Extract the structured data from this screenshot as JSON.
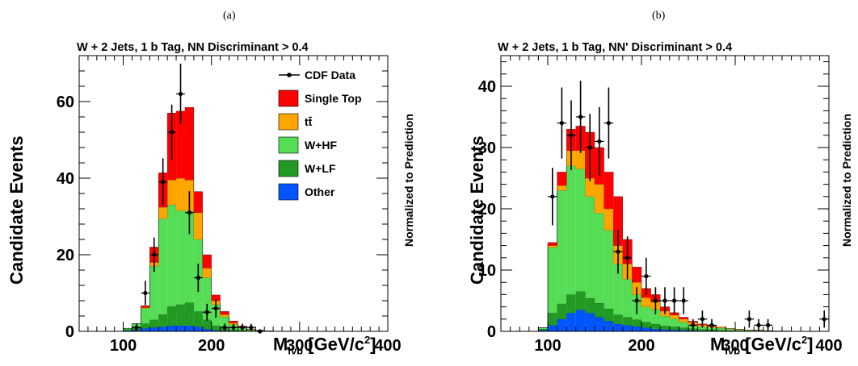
{
  "panels": [
    {
      "label": "(a)",
      "title": "W + 2 Jets, 1 b Tag, NN Discriminant > 0.4",
      "ylabel": "Candidate Events",
      "right_label": "Normalized to Prediction",
      "xlabel_main": "M",
      "xlabel_sub": "lνb",
      "xlabel_unit": " [GeV/c",
      "xlabel_sup": "2",
      "xlabel_close": "]"
    },
    {
      "label": "(b)",
      "title": "W + 2 Jets, 1 b Tag, NN' Discriminant > 0.4",
      "ylabel": "Candidate Events",
      "right_label": "Normalized to Prediction",
      "xlabel_main": "M",
      "xlabel_sub": "lνb",
      "xlabel_unit": " [GeV/c",
      "xlabel_sup": "2",
      "xlabel_close": "]"
    }
  ],
  "legend": [
    {
      "label": "CDF Data",
      "kind": "marker"
    },
    {
      "label": "Single Top",
      "kind": "box",
      "color": "#ff0000"
    },
    {
      "label": "tt̄",
      "kind": "box",
      "color": "#ffa500"
    },
    {
      "label": "W+HF",
      "kind": "box",
      "color": "#55dd55"
    },
    {
      "label": "W+LF",
      "kind": "box",
      "color": "#229922"
    },
    {
      "label": "Other",
      "kind": "box",
      "color": "#0055ff"
    }
  ],
  "chart_data": [
    {
      "type": "bar",
      "stacked": true,
      "bin_width": 10,
      "xlim": [
        50,
        400
      ],
      "ylim": [
        0,
        72
      ],
      "xticks": [
        100,
        200,
        300,
        400
      ],
      "yticks": [
        0,
        20,
        40,
        60
      ],
      "bin_lows": [
        90,
        100,
        110,
        120,
        130,
        140,
        150,
        160,
        170,
        180,
        190,
        200,
        210,
        220,
        230,
        240,
        250,
        260,
        270
      ],
      "series": [
        {
          "name": "Other",
          "color": "#0055ff",
          "values": [
            0,
            0.2,
            0.4,
            0.8,
            1.0,
            1.2,
            1.5,
            1.5,
            1.5,
            1.2,
            0.6,
            0.3,
            0.2,
            0.1,
            0.1,
            0,
            0,
            0,
            0
          ]
        },
        {
          "name": "W+LF",
          "color": "#229922",
          "values": [
            0,
            0.3,
            0.6,
            1.2,
            2.0,
            3.2,
            5.0,
            5.5,
            6.0,
            4.0,
            2.4,
            1.2,
            0.6,
            0.3,
            0.2,
            0.1,
            0,
            0,
            0
          ]
        },
        {
          "name": "W+HF",
          "color": "#55dd55",
          "values": [
            0,
            0.3,
            1.0,
            4.0,
            14.0,
            25.0,
            26.5,
            24.5,
            24.0,
            18.8,
            11.0,
            5.5,
            3.0,
            1.4,
            0.7,
            0.3,
            0.2,
            0.1,
            0
          ]
        },
        {
          "name": "tt̄",
          "color": "#ffa500",
          "values": [
            0,
            0,
            0,
            0.2,
            1.0,
            3.0,
            6.5,
            8.5,
            8.0,
            7.0,
            2.5,
            1.0,
            0.6,
            0.4,
            0.2,
            0.1,
            0.1,
            0,
            0
          ]
        },
        {
          "name": "Single Top",
          "color": "#ff0000",
          "values": [
            0,
            0,
            0,
            0.5,
            4.0,
            9.0,
            17.5,
            17.5,
            19.0,
            5.5,
            3.5,
            1.5,
            0.8,
            0.5,
            0.2,
            0.1,
            0,
            0,
            0
          ]
        }
      ],
      "data_points": {
        "name": "CDF Data",
        "x": [
          115,
          125,
          135,
          145,
          155,
          165,
          175,
          185,
          195,
          205,
          215,
          225,
          235,
          245,
          255
        ],
        "y": [
          1,
          10,
          20,
          39,
          52,
          62,
          31,
          14,
          5,
          6,
          1,
          1,
          1,
          1,
          0
        ],
        "yerr": [
          1,
          3.2,
          4.5,
          6.2,
          7.2,
          7.9,
          5.6,
          3.7,
          2.2,
          2.4,
          1,
          1,
          1,
          1,
          0
        ]
      }
    },
    {
      "type": "bar",
      "stacked": true,
      "bin_width": 10,
      "xlim": [
        50,
        400
      ],
      "ylim": [
        0,
        45
      ],
      "xticks": [
        100,
        200,
        300,
        400
      ],
      "yticks": [
        0,
        10,
        20,
        30,
        40
      ],
      "bin_lows": [
        80,
        90,
        100,
        110,
        120,
        130,
        140,
        150,
        160,
        170,
        180,
        190,
        200,
        210,
        220,
        230,
        240,
        250,
        260,
        270,
        280,
        290,
        300,
        310,
        320,
        330,
        340,
        350,
        360,
        370,
        380,
        390
      ],
      "series": [
        {
          "name": "Other",
          "color": "#0055ff",
          "values": [
            0,
            0.2,
            1.0,
            2.0,
            3.0,
            3.5,
            3.0,
            2.3,
            1.7,
            1.2,
            1.0,
            0.8,
            0.6,
            0.4,
            0.3,
            0.25,
            0.2,
            0.15,
            0.1,
            0.1,
            0.05,
            0.05,
            0,
            0,
            0,
            0,
            0,
            0,
            0,
            0,
            0,
            0
          ]
        },
        {
          "name": "W+LF",
          "color": "#229922",
          "values": [
            0,
            0.2,
            2.0,
            2.5,
            3.0,
            3.0,
            2.4,
            2.3,
            2.0,
            1.5,
            1.3,
            1.1,
            0.9,
            0.8,
            0.6,
            0.5,
            0.4,
            0.3,
            0.25,
            0.2,
            0.15,
            0.1,
            0.1,
            0.05,
            0.05,
            0,
            0,
            0,
            0,
            0,
            0,
            0
          ]
        },
        {
          "name": "W+HF",
          "color": "#55dd55",
          "values": [
            0,
            0.2,
            10.7,
            18.5,
            21.0,
            20.0,
            16.6,
            14.7,
            12.8,
            8.3,
            6.2,
            4.1,
            2.5,
            2.4,
            1.6,
            1.3,
            0.9,
            0.6,
            0.4,
            0.3,
            0.3,
            0.2,
            0.15,
            0.1,
            0.1,
            0.1,
            0.05,
            0.05,
            0,
            0,
            0,
            0
          ]
        },
        {
          "name": "tt̄",
          "color": "#ffa500",
          "values": [
            0,
            0,
            0.3,
            0.8,
            2.5,
            3.0,
            3.0,
            4.7,
            3.5,
            3.0,
            2.5,
            2.0,
            1.5,
            1.2,
            0.8,
            0.6,
            0.5,
            0.4,
            0.3,
            0.2,
            0.15,
            0.1,
            0.1,
            0.05,
            0.05,
            0,
            0,
            0,
            0,
            0,
            0,
            0
          ]
        },
        {
          "name": "Single Top",
          "color": "#ff0000",
          "values": [
            0,
            0,
            0.5,
            2.2,
            3.5,
            4.0,
            7.5,
            6.0,
            6.0,
            8.0,
            4.0,
            2.5,
            1.5,
            1.2,
            0.7,
            0.4,
            0.3,
            0.2,
            0.15,
            0.1,
            0.05,
            0,
            0,
            0,
            0,
            0,
            0,
            0,
            0,
            0,
            0,
            0
          ]
        }
      ],
      "data_points": {
        "name": "CDF Data",
        "x": [
          105,
          115,
          125,
          135,
          145,
          155,
          165,
          175,
          185,
          195,
          205,
          215,
          225,
          235,
          245,
          255,
          265,
          275,
          315,
          325,
          335,
          395
        ],
        "y": [
          22,
          34,
          32,
          35,
          30,
          31,
          34,
          13,
          12,
          5,
          9,
          5,
          5,
          5,
          5,
          1,
          2,
          1,
          2,
          1,
          1,
          2
        ],
        "yerr": [
          4.7,
          5.8,
          5.7,
          5.9,
          5.5,
          5.6,
          5.8,
          3.6,
          3.5,
          2.2,
          3.0,
          2.2,
          2.2,
          2.2,
          2.2,
          1,
          1.4,
          1,
          1.4,
          1,
          1,
          1.4
        ]
      }
    }
  ]
}
